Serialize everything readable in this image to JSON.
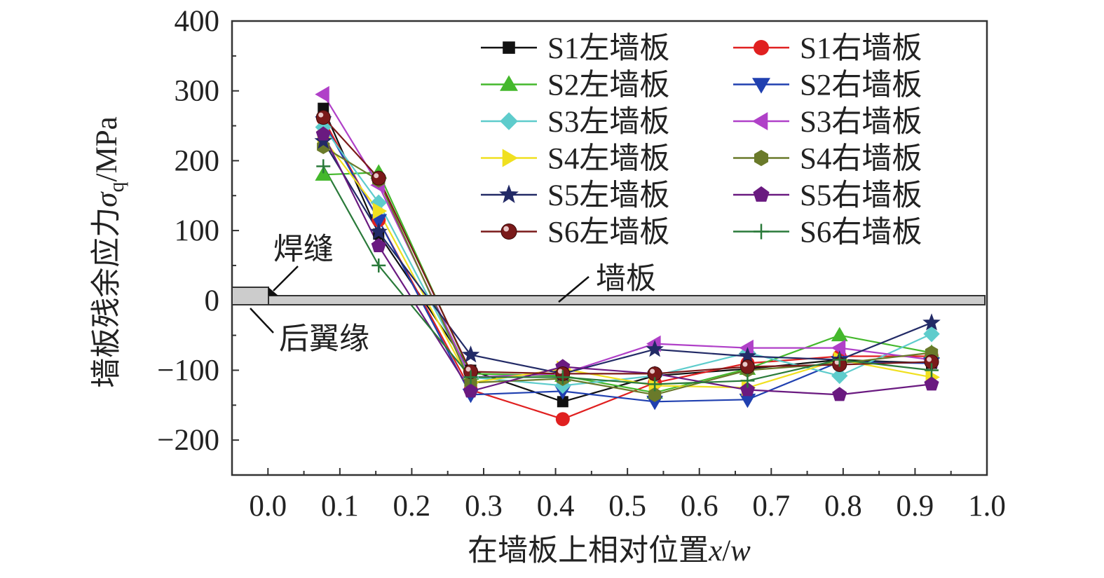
{
  "chart_data": {
    "type": "line",
    "xlabel": "在墙板上相对位置x/w",
    "ylabel": "墙板残余应力σq/MPa",
    "xlim": [
      -0.05,
      1.0
    ],
    "ylim": [
      -250,
      400
    ],
    "x_ticks": [
      "0.0",
      "0.1",
      "0.2",
      "0.3",
      "0.4",
      "0.5",
      "0.6",
      "0.7",
      "0.8",
      "0.9",
      "1.0"
    ],
    "y_ticks": [
      "400",
      "300",
      "200",
      "100",
      "0",
      "−100",
      "−200"
    ],
    "x_tick_values": [
      0,
      0.1,
      0.2,
      0.3,
      0.4,
      0.5,
      0.6,
      0.7,
      0.8,
      0.9,
      1.0
    ],
    "y_tick_values": [
      400,
      300,
      200,
      100,
      0,
      -100,
      -200
    ],
    "x": [
      0.077,
      0.154,
      0.282,
      0.41,
      0.538,
      0.667,
      0.795,
      0.923
    ],
    "legend_position": "top-right",
    "grid": false,
    "series": [
      {
        "name": "S1左墙板",
        "color": "#111111",
        "marker": "square",
        "values": [
          275,
          95,
          -100,
          -145,
          -108,
          -98,
          -85,
          -90
        ]
      },
      {
        "name": "S1右墙板",
        "color": "#e02020",
        "marker": "circle",
        "values": [
          260,
          115,
          -128,
          -170,
          -118,
          -90,
          -80,
          -80
        ]
      },
      {
        "name": "S2左墙板",
        "color": "#44b82c",
        "marker": "triangle-up",
        "values": [
          180,
          183,
          -105,
          -108,
          -132,
          -98,
          -50,
          -75
        ]
      },
      {
        "name": "S2右墙板",
        "color": "#2040b0",
        "marker": "triangle-down",
        "values": [
          255,
          115,
          -135,
          -130,
          -145,
          -142,
          -88,
          -90
        ]
      },
      {
        "name": "S3左墙板",
        "color": "#5ecccc",
        "marker": "diamond",
        "values": [
          248,
          140,
          -110,
          -122,
          -108,
          -75,
          -108,
          -48
        ]
      },
      {
        "name": "S3右墙板",
        "color": "#b040c8",
        "marker": "triangle-left",
        "values": [
          295,
          165,
          -110,
          -105,
          -62,
          -68,
          -68,
          -85
        ]
      },
      {
        "name": "S4左墙板",
        "color": "#f0e020",
        "marker": "triangle-right",
        "values": [
          232,
          128,
          -118,
          -98,
          -122,
          -125,
          -85,
          -110
        ]
      },
      {
        "name": "S4右墙板",
        "color": "#6a7a2a",
        "marker": "hexagon",
        "values": [
          220,
          172,
          -118,
          -112,
          -135,
          -100,
          -90,
          -75
        ]
      },
      {
        "name": "S5左墙板",
        "color": "#222a66",
        "marker": "star",
        "values": [
          228,
          98,
          -78,
          -105,
          -70,
          -80,
          -85,
          -32
        ]
      },
      {
        "name": "S5右墙板",
        "color": "#6a1a80",
        "marker": "pentagon",
        "values": [
          238,
          78,
          -130,
          -95,
          -105,
          -128,
          -135,
          -120
        ]
      },
      {
        "name": "S6左墙板",
        "color": "#7a1a1a",
        "marker": "ball",
        "values": [
          262,
          175,
          -102,
          -105,
          -105,
          -95,
          -92,
          -88
        ]
      },
      {
        "name": "S6右墙板",
        "color": "#2a7a3a",
        "marker": "plus",
        "values": [
          192,
          50,
          -110,
          -110,
          -120,
          -115,
          -85,
          -100
        ]
      }
    ],
    "annotations": {
      "weld": "焊缝",
      "wall_plate": "墙板",
      "rear_flange": "后翼缘"
    }
  }
}
